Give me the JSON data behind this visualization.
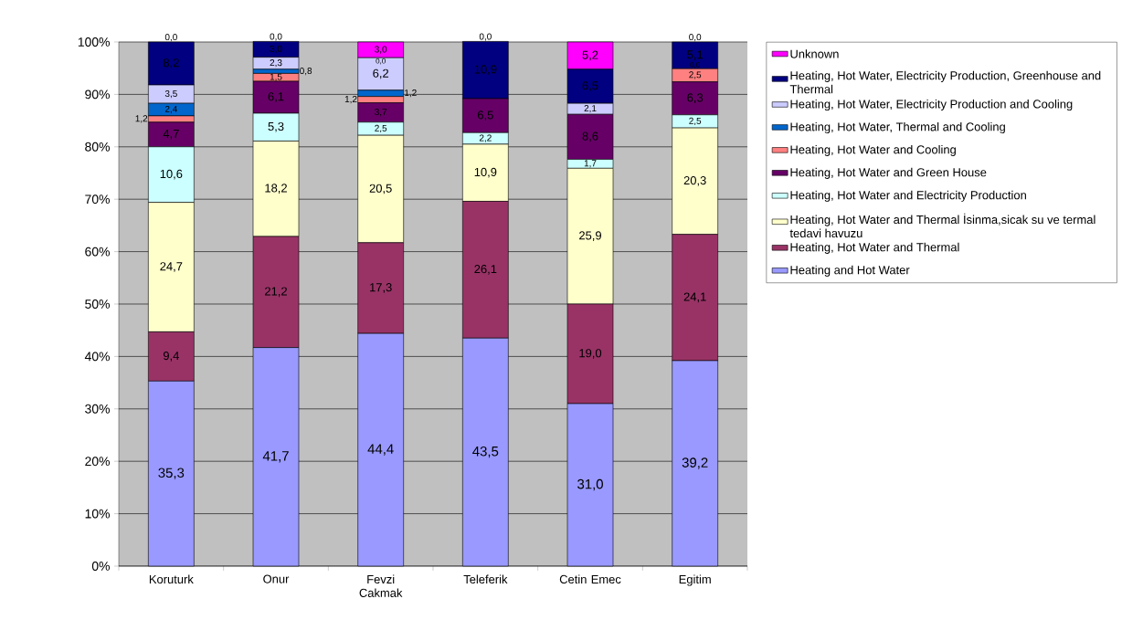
{
  "chart_data": {
    "type": "bar",
    "stacked": true,
    "categories": [
      "Koruturk",
      "Onur",
      "Fevzi Cakmak",
      "Teleferik",
      "Cetin Emec",
      "Egitim"
    ],
    "ylim": [
      0,
      100
    ],
    "yticks": [
      {
        "value": 0,
        "label": "0%"
      },
      {
        "value": 10,
        "label": "10%"
      },
      {
        "value": 20,
        "label": "20%"
      },
      {
        "value": 30,
        "label": "30%"
      },
      {
        "value": 40,
        "label": "40%"
      },
      {
        "value": 50,
        "label": "50%"
      },
      {
        "value": 60,
        "label": "60%"
      },
      {
        "value": 70,
        "label": "70%"
      },
      {
        "value": 80,
        "label": "80%"
      },
      {
        "value": 90,
        "label": "90%"
      },
      {
        "value": 100,
        "label": "100%"
      }
    ],
    "grid": "y",
    "legend": "right",
    "series": [
      {
        "name": "Heating and Hot Water",
        "color": "#9999ff",
        "values": [
          35.3,
          41.7,
          44.4,
          43.5,
          31.0,
          39.2
        ],
        "value_labels": [
          "35,3",
          "41,7",
          "44,4",
          "43,5",
          "31,0",
          "39,2"
        ]
      },
      {
        "name": "Heating, Hot Water and Thermal",
        "color": "#993366",
        "values": [
          9.4,
          21.2,
          17.3,
          26.1,
          19.0,
          24.1
        ],
        "value_labels": [
          "9,4",
          "21,2",
          "17,3",
          "26,1",
          "19,0",
          "24,1"
        ]
      },
      {
        "name": "Heating, Hot Water and Thermal İsinma,sicak su ve termal tedavi havuzu",
        "color": "#ffffcc",
        "values": [
          24.7,
          18.2,
          20.5,
          10.9,
          25.9,
          20.3
        ],
        "value_labels": [
          "24,7",
          "18,2",
          "20,5",
          "10,9",
          "25,9",
          "20,3"
        ]
      },
      {
        "name": "Heating, Hot Water and Electricity Production",
        "color": "#ccffff",
        "values": [
          10.6,
          5.3,
          2.5,
          2.2,
          1.7,
          2.5
        ],
        "value_labels": [
          "10,6",
          "5,3",
          "2,5",
          "2,2",
          "1,7",
          "2,5"
        ]
      },
      {
        "name": "Heating, Hot Water and Green House",
        "color": "#660066",
        "values": [
          4.7,
          6.1,
          3.7,
          6.5,
          8.6,
          6.3
        ],
        "value_labels": [
          "4,7",
          "6,1",
          "3,7",
          "6,5",
          "8,6",
          "6,3"
        ]
      },
      {
        "name": "Heating, Hot Water and Cooling",
        "color": "#ff8080",
        "values": [
          1.2,
          1.5,
          1.2,
          0.0,
          0.0,
          2.5
        ],
        "value_labels": [
          "1,2",
          "1,5",
          "1,2",
          null,
          null,
          "2,5"
        ]
      },
      {
        "name": "Heating, Hot Water, Thermal and Cooling",
        "color": "#0066cc",
        "values": [
          2.4,
          0.8,
          1.2,
          0.0,
          0.0,
          0.0
        ],
        "value_labels": [
          "2,4",
          "0,8",
          "1,2",
          null,
          null,
          "0,0"
        ]
      },
      {
        "name": "Heating, Hot Water, Electricity Production and Cooling",
        "color": "#ccccff",
        "values": [
          3.5,
          2.3,
          6.2,
          0.0,
          2.1,
          0.0
        ],
        "value_labels": [
          "3,5",
          "2,3",
          "6,2",
          null,
          "2,1",
          null
        ]
      },
      {
        "name": "Heating, Hot Water, Electricity Production, Greenhouse and Thermal",
        "color": "#000080",
        "values": [
          8.2,
          3.0,
          0.0,
          10.9,
          6.5,
          5.1
        ],
        "value_labels": [
          "8,2",
          "3,0",
          "0,0",
          "10,9",
          "6,5",
          "5,1"
        ]
      },
      {
        "name": "Unknown",
        "color": "#ff00ff",
        "values": [
          0.0,
          0.0,
          3.0,
          0.0,
          5.2,
          0.0
        ],
        "value_labels": [
          "0,0",
          "0,0",
          "3,0",
          "0,0",
          "5,2",
          "0,0"
        ]
      }
    ]
  }
}
